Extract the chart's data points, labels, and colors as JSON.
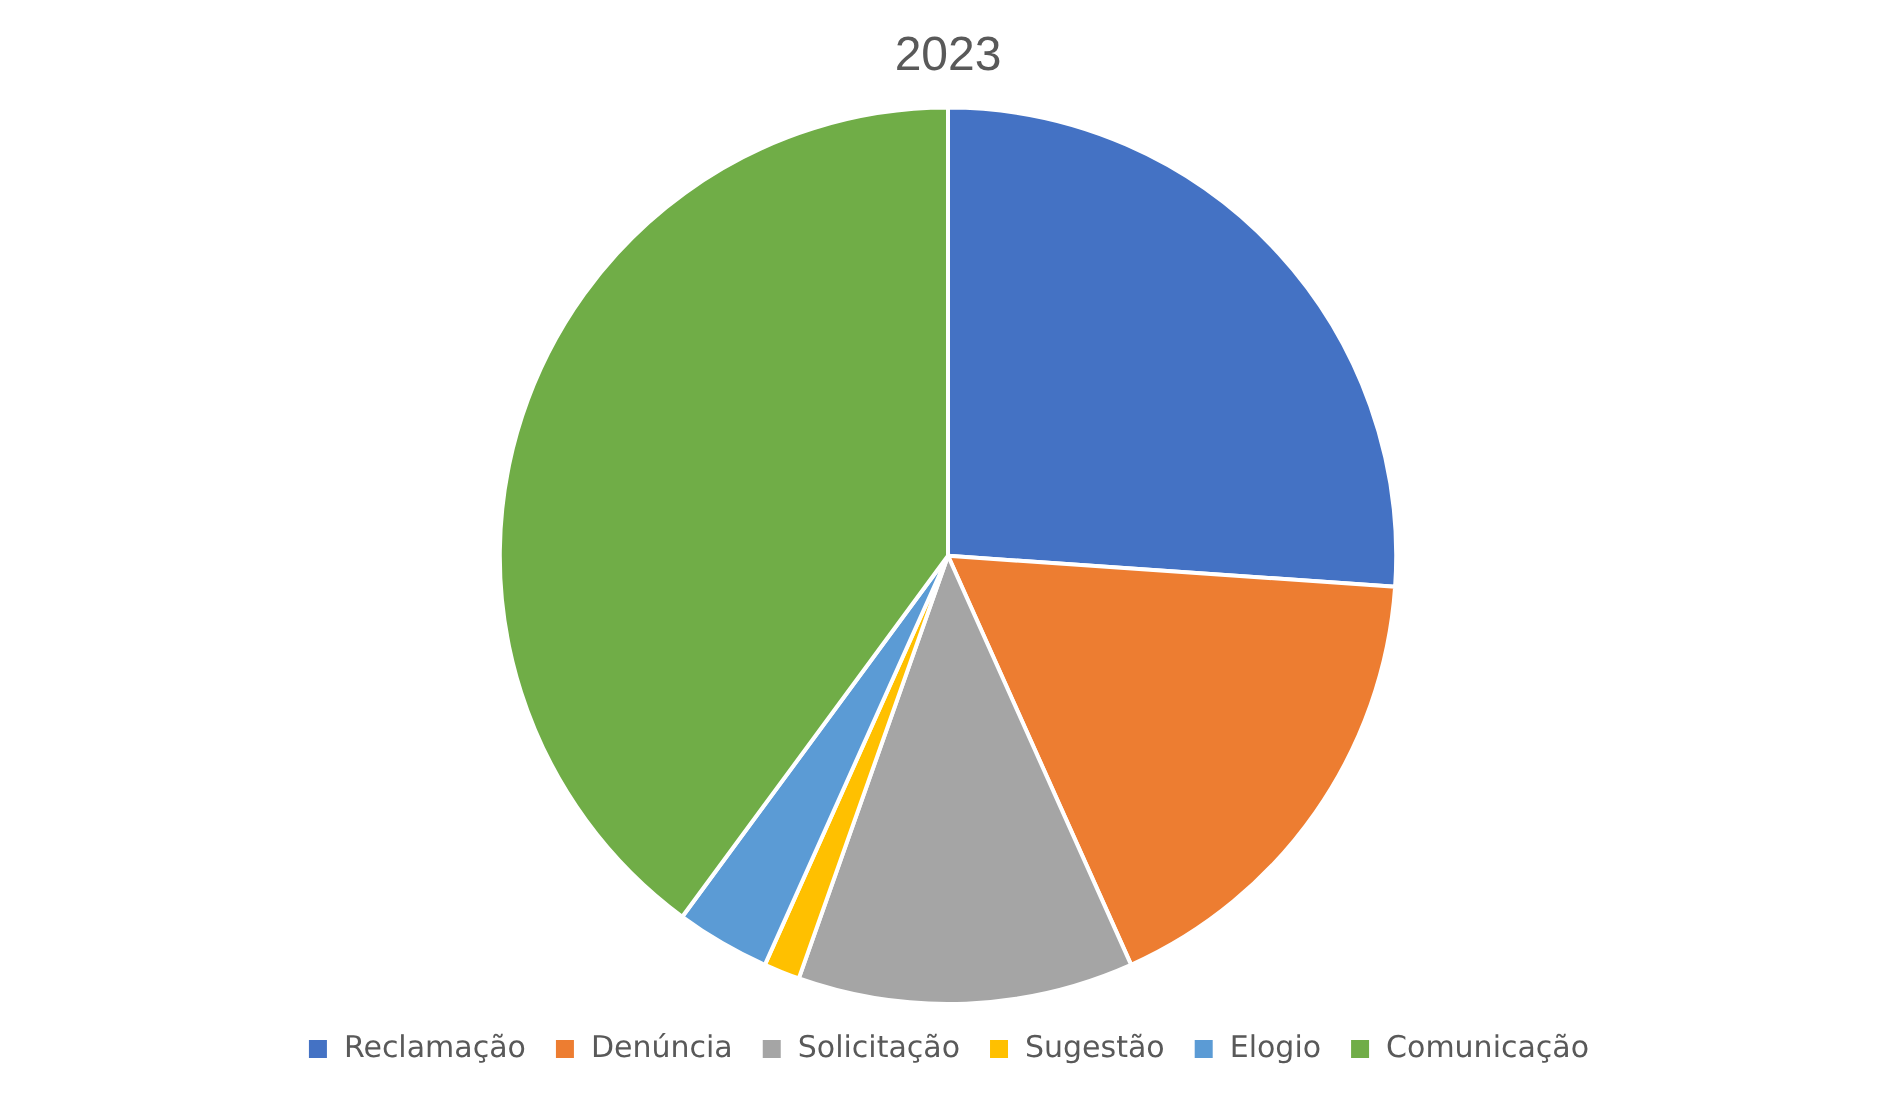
{
  "chart_data": {
    "type": "pie",
    "title": "2023",
    "categories": [
      "Reclamação",
      "Denúncia",
      "Solicitação",
      "Sugestão",
      "Elogio",
      "Comunicação"
    ],
    "values": [
      26.1,
      17.2,
      12.1,
      1.3,
      3.4,
      39.9
    ],
    "colors": [
      "#4472c4",
      "#ed7d31",
      "#a5a5a5",
      "#ffc000",
      "#5b9bd5",
      "#70ad47"
    ],
    "legend": "bottom"
  }
}
